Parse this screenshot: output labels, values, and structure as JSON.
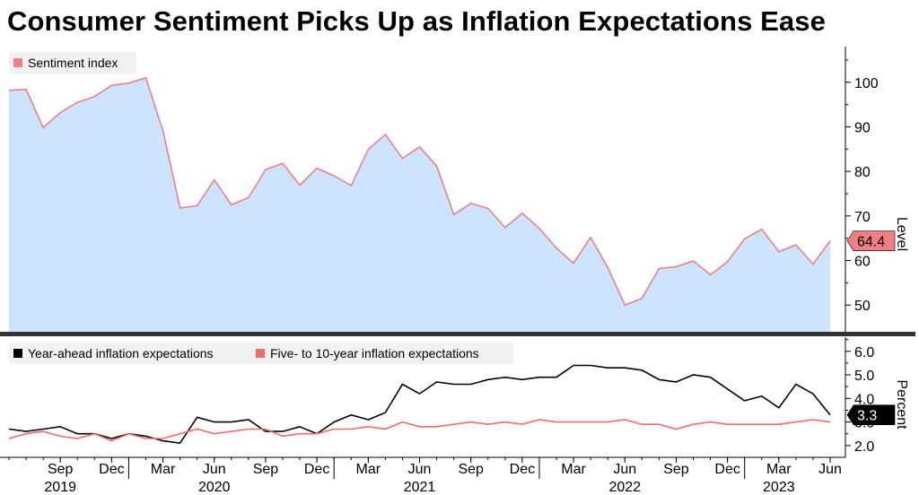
{
  "title": "Consumer Sentiment Picks Up as Inflation Expectations Ease",
  "colors": {
    "sentiment_line": "#ef7f82",
    "sentiment_fill": "#cce4ff",
    "year_ahead": "#000000",
    "long_term": "#f26b6b",
    "divider": "#333333"
  },
  "chart_data": [
    {
      "type": "area",
      "title": "Consumer Sentiment Picks Up as Inflation Expectations Ease",
      "legend": [
        "Sentiment index"
      ],
      "ylabel": "Level",
      "ylim": [
        44,
        108
      ],
      "yticks": [
        50,
        60,
        70,
        80,
        90,
        100
      ],
      "x_range": [
        "2019-06",
        "2023-06"
      ],
      "x": [
        "2019-06",
        "2019-07",
        "2019-08",
        "2019-09",
        "2019-10",
        "2019-11",
        "2019-12",
        "2020-01",
        "2020-02",
        "2020-03",
        "2020-04",
        "2020-05",
        "2020-06",
        "2020-07",
        "2020-08",
        "2020-09",
        "2020-10",
        "2020-11",
        "2020-12",
        "2021-01",
        "2021-02",
        "2021-03",
        "2021-04",
        "2021-05",
        "2021-06",
        "2021-07",
        "2021-08",
        "2021-09",
        "2021-10",
        "2021-11",
        "2021-12",
        "2022-01",
        "2022-02",
        "2022-03",
        "2022-04",
        "2022-05",
        "2022-06",
        "2022-07",
        "2022-08",
        "2022-09",
        "2022-10",
        "2022-11",
        "2022-12",
        "2023-01",
        "2023-02",
        "2023-03",
        "2023-04",
        "2023-05",
        "2023-06"
      ],
      "series": [
        {
          "name": "Sentiment index",
          "values": [
            98.2,
            98.4,
            89.8,
            93.2,
            95.5,
            96.8,
            99.3,
            99.8,
            101.0,
            89.1,
            71.8,
            72.3,
            78.1,
            72.5,
            74.1,
            80.4,
            81.8,
            76.9,
            80.7,
            79.0,
            76.8,
            84.9,
            88.3,
            82.9,
            85.5,
            81.2,
            70.3,
            72.8,
            71.7,
            67.4,
            70.6,
            67.2,
            62.8,
            59.4,
            65.2,
            58.4,
            50.0,
            51.5,
            58.2,
            58.6,
            59.9,
            56.8,
            59.7,
            64.9,
            67.0,
            62.0,
            63.5,
            59.2,
            64.4
          ]
        }
      ],
      "last_value_label": "64.4"
    },
    {
      "type": "line",
      "legend": [
        "Year-ahead inflation expectations",
        "Five- to 10-year inflation expectations"
      ],
      "ylabel": "Percent",
      "ylim": [
        1.5,
        6.6
      ],
      "yticks": [
        "2.0",
        "3.0",
        "4.0",
        "5.0",
        "6.0"
      ],
      "x_range": [
        "2019-06",
        "2023-06"
      ],
      "x": [
        "2019-06",
        "2019-07",
        "2019-08",
        "2019-09",
        "2019-10",
        "2019-11",
        "2019-12",
        "2020-01",
        "2020-02",
        "2020-03",
        "2020-04",
        "2020-05",
        "2020-06",
        "2020-07",
        "2020-08",
        "2020-09",
        "2020-10",
        "2020-11",
        "2020-12",
        "2021-01",
        "2021-02",
        "2021-03",
        "2021-04",
        "2021-05",
        "2021-06",
        "2021-07",
        "2021-08",
        "2021-09",
        "2021-10",
        "2021-11",
        "2021-12",
        "2022-01",
        "2022-02",
        "2022-03",
        "2022-04",
        "2022-05",
        "2022-06",
        "2022-07",
        "2022-08",
        "2022-09",
        "2022-10",
        "2022-11",
        "2022-12",
        "2023-01",
        "2023-02",
        "2023-03",
        "2023-04",
        "2023-05",
        "2023-06"
      ],
      "series": [
        {
          "name": "Year-ahead inflation expectations",
          "values": [
            2.7,
            2.6,
            2.7,
            2.8,
            2.5,
            2.5,
            2.3,
            2.5,
            2.4,
            2.2,
            2.1,
            3.2,
            3.0,
            3.0,
            3.1,
            2.6,
            2.6,
            2.8,
            2.5,
            3.0,
            3.3,
            3.1,
            3.4,
            4.6,
            4.2,
            4.7,
            4.6,
            4.6,
            4.8,
            4.9,
            4.8,
            4.9,
            4.9,
            5.4,
            5.4,
            5.3,
            5.3,
            5.2,
            4.8,
            4.7,
            5.0,
            4.9,
            4.4,
            3.9,
            4.1,
            3.6,
            4.6,
            4.2,
            3.3
          ]
        },
        {
          "name": "Five- to 10-year inflation expectations",
          "values": [
            2.3,
            2.5,
            2.6,
            2.4,
            2.3,
            2.5,
            2.2,
            2.5,
            2.3,
            2.3,
            2.5,
            2.7,
            2.5,
            2.6,
            2.7,
            2.7,
            2.4,
            2.5,
            2.5,
            2.7,
            2.7,
            2.8,
            2.7,
            3.0,
            2.8,
            2.8,
            2.9,
            3.0,
            2.9,
            3.0,
            2.9,
            3.1,
            3.0,
            3.0,
            3.0,
            3.0,
            3.1,
            2.9,
            2.9,
            2.7,
            2.9,
            3.0,
            2.9,
            2.9,
            2.9,
            2.9,
            3.0,
            3.1,
            3.0
          ]
        }
      ],
      "last_value_label": "3.3"
    }
  ],
  "x_axis": {
    "month_labels": [
      {
        "label": "Sep",
        "date": "2019-09"
      },
      {
        "label": "Dec",
        "date": "2019-12"
      },
      {
        "label": "Mar",
        "date": "2020-03"
      },
      {
        "label": "Jun",
        "date": "2020-06"
      },
      {
        "label": "Sep",
        "date": "2020-09"
      },
      {
        "label": "Dec",
        "date": "2020-12"
      },
      {
        "label": "Mar",
        "date": "2021-03"
      },
      {
        "label": "Jun",
        "date": "2021-06"
      },
      {
        "label": "Sep",
        "date": "2021-09"
      },
      {
        "label": "Dec",
        "date": "2021-12"
      },
      {
        "label": "Mar",
        "date": "2022-03"
      },
      {
        "label": "Jun",
        "date": "2022-06"
      },
      {
        "label": "Sep",
        "date": "2022-09"
      },
      {
        "label": "Dec",
        "date": "2022-12"
      },
      {
        "label": "Mar",
        "date": "2023-03"
      },
      {
        "label": "Jun",
        "date": "2023-06"
      }
    ],
    "year_labels": [
      {
        "label": "2019",
        "date": "2019-09"
      },
      {
        "label": "2020",
        "date": "2020-06"
      },
      {
        "label": "2021",
        "date": "2021-06"
      },
      {
        "label": "2022",
        "date": "2022-06"
      },
      {
        "label": "2023",
        "date": "2023-03"
      }
    ]
  }
}
